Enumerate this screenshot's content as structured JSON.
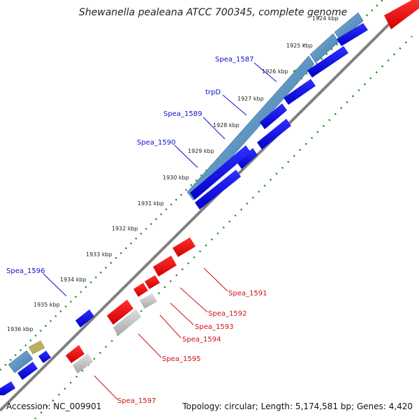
{
  "title": "Shewanella pealeana ATCC 700345, complete genome",
  "footer": {
    "accession": "Accession: NC_009901",
    "stats": "Topology: circular; Length: 5,174,581 bp; Genes: 4,420"
  },
  "ticks": [
    "1924 kbp",
    "1925 kbp",
    "1926 kbp",
    "1927 kbp",
    "1928 kbp",
    "1929 kbp",
    "1930 kbp",
    "1931 kbp",
    "1932 kbp",
    "1933 kbp",
    "1934 kbp",
    "1935 kbp",
    "1936 kbp"
  ],
  "gene_labels_forward": [
    "Spea_1587",
    "trpD",
    "Spea_1589",
    "Spea_1590",
    "Spea_1596"
  ],
  "gene_labels_reverse": [
    "Spea_1591",
    "Spea_1592",
    "Spea_1593",
    "Spea_1594",
    "Spea_1595",
    "Spea_1597"
  ],
  "colors": {
    "forward_cds": "#0000e6",
    "forward_operon": "#4a86b8",
    "reverse_cds": "#ee0000",
    "reverse_other": "#b8b8b8",
    "misc_feature": "#b8b060",
    "backbone": "#808080",
    "gc_dots": "#1a8a1a"
  }
}
